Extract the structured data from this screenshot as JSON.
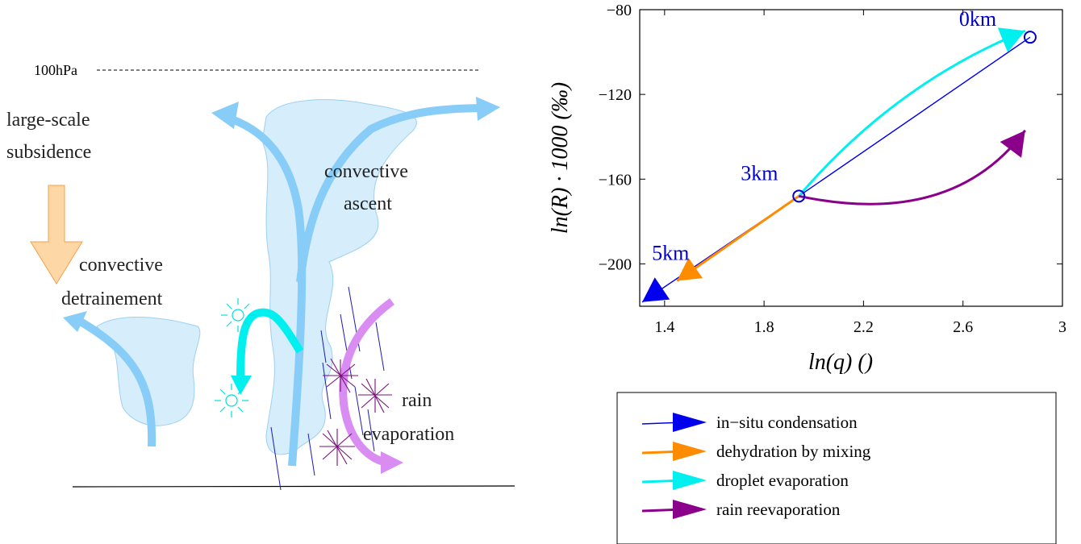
{
  "schematic": {
    "top_level_label": "100hPa",
    "subsidence_label_line1": "large-scale",
    "subsidence_label_line2": "subsidence",
    "ascent_label_line1": "convective",
    "ascent_label_line2": "ascent",
    "detrain_label_line1": "convective",
    "detrain_label_line2": "detrainement",
    "rain_label_line1": "rain",
    "rain_label_line2": "evaporation"
  },
  "chart_data": {
    "type": "line",
    "xlabel": "ln(q) ()",
    "ylabel": "ln(R) · 1000 (‰)",
    "xlim": [
      1.3,
      3.0
    ],
    "ylim": [
      -220,
      -80
    ],
    "xticks": [
      "1.4",
      "1.8",
      "2.2",
      "2.6",
      "3"
    ],
    "yticks": [
      "−80",
      "−120",
      "−160",
      "−200"
    ],
    "xtick_values": [
      1.4,
      1.8,
      2.2,
      2.6,
      3.0
    ],
    "ytick_values": [
      -80,
      -120,
      -160,
      -200
    ],
    "altitude_labels": [
      "0km",
      "3km",
      "5km"
    ],
    "points": [
      {
        "label": "0km",
        "x": 2.87,
        "y": -93
      },
      {
        "label": "3km",
        "x": 1.94,
        "y": -168
      },
      {
        "label": "5km",
        "x": 1.31,
        "y": -218
      }
    ],
    "series": [
      {
        "name": "in−situ condensation",
        "color": "#0000ee",
        "x": [
          2.87,
          1.94,
          1.31
        ],
        "y": [
          -93,
          -168,
          -218
        ]
      },
      {
        "name": "dehydration by mixing",
        "color": "#ff8c00",
        "x": [
          1.94,
          1.45
        ],
        "y": [
          -168,
          -208
        ]
      },
      {
        "name": "droplet evaporation",
        "color": "#00f0f0",
        "x": [
          1.94,
          2.85
        ],
        "y": [
          -168,
          -90
        ]
      },
      {
        "name": "rain reevaporation",
        "color": "#8b008b",
        "x": [
          1.94,
          2.85
        ],
        "y": [
          -168,
          -137
        ]
      }
    ],
    "legend_position": "bottom"
  }
}
